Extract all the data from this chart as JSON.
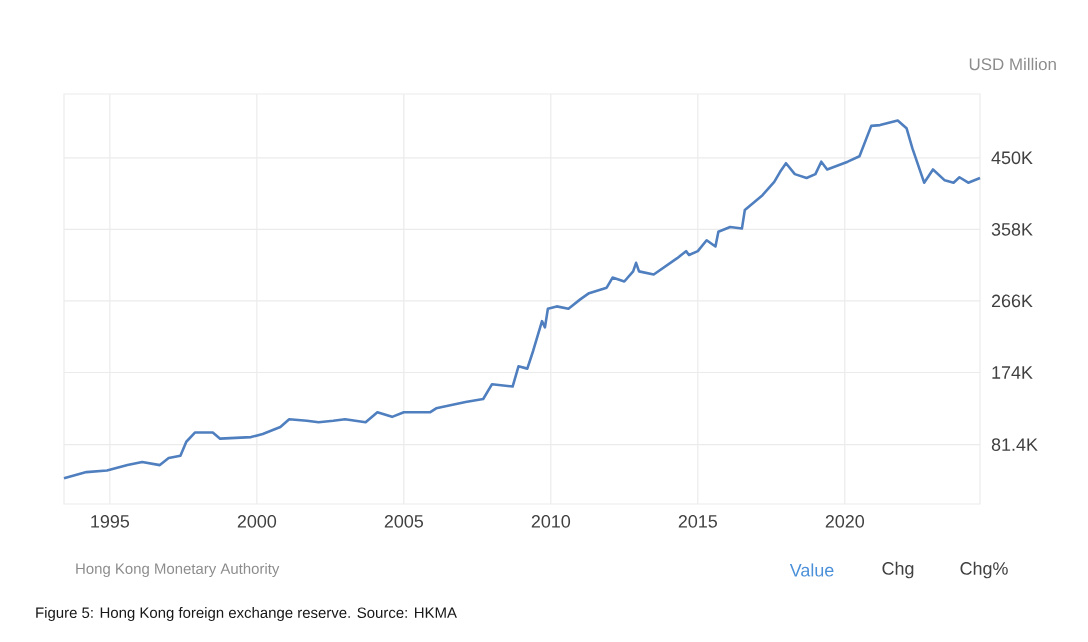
{
  "chart_data": {
    "type": "line",
    "ylabel": "USD Million",
    "x": [
      1993.44,
      1994.2,
      1994.9,
      1995.6,
      1996.1,
      1996.7,
      1997.0,
      1997.4,
      1997.6,
      1997.9,
      1998.5,
      1998.75,
      1999.8,
      2000.2,
      2000.8,
      2001.1,
      2001.7,
      2002.1,
      2002.6,
      2003.0,
      2003.7,
      2004.1,
      2004.6,
      2005.0,
      2005.9,
      2006.1,
      2007.1,
      2007.7,
      2008.0,
      2008.7,
      2008.9,
      2009.2,
      2009.4,
      2009.7,
      2009.8,
      2009.9,
      2010.2,
      2010.6,
      2011.0,
      2011.3,
      2011.9,
      2012.1,
      2012.5,
      2012.8,
      2012.9,
      2013.0,
      2013.5,
      2014.3,
      2014.6,
      2014.7,
      2015.0,
      2015.3,
      2015.6,
      2015.7,
      2016.1,
      2016.5,
      2016.6,
      2017.2,
      2017.6,
      2017.8,
      2018.0,
      2018.3,
      2018.7,
      2019.0,
      2019.2,
      2019.4,
      2020.1,
      2020.5,
      2020.9,
      2021.2,
      2021.8,
      2022.1,
      2022.3,
      2022.7,
      2023.0,
      2023.4,
      2023.7,
      2023.9,
      2024.2,
      2024.6
    ],
    "series": [
      {
        "color": "#4f7fbf",
        "values": [
          38,
          46,
          48,
          55,
          59,
          55,
          64,
          67,
          85,
          97,
          97,
          89,
          91,
          95,
          104,
          114,
          112,
          110,
          112,
          114,
          110,
          123,
          117,
          123,
          123,
          128,
          136,
          140,
          159,
          156,
          182,
          179,
          202,
          240,
          232,
          256,
          259,
          256,
          268,
          276,
          283,
          296,
          291,
          304,
          315,
          304,
          300,
          321,
          330,
          325,
          330,
          344,
          336,
          355,
          361,
          359,
          383,
          402,
          419,
          432,
          443,
          429,
          424,
          429,
          445,
          435,
          445,
          452,
          491,
          492,
          498,
          488,
          462,
          418,
          435,
          421,
          418,
          425,
          418,
          424
        ]
      }
    ],
    "xlim": [
      1993.44,
      2024.6
    ],
    "ylim": [
      5,
      532
    ],
    "xticks": [
      1995,
      2000,
      2005,
      2010,
      2015,
      2020
    ],
    "yticks": [
      {
        "value": 81.4,
        "label": "81.4K"
      },
      {
        "value": 174,
        "label": "174K"
      },
      {
        "value": 266,
        "label": "266K"
      },
      {
        "value": 358,
        "label": "358K"
      },
      {
        "value": 450,
        "label": "450K"
      }
    ],
    "grid": true,
    "marker": "none",
    "line_style": "solid",
    "annotations": [
      "Hong Kong Monetary Authority",
      "Value",
      "Chg",
      "Chg%",
      "Figure 5: Hong Kong foreign exchange reserve. Source: HKMA"
    ]
  }
}
